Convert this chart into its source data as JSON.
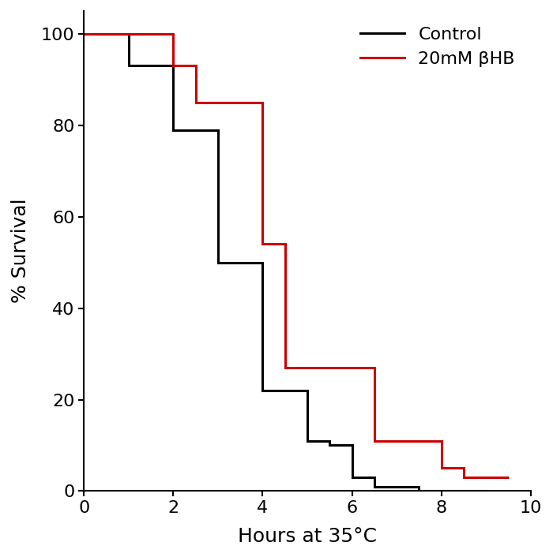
{
  "control_x": [
    0,
    1.0,
    1.0,
    2.0,
    2.0,
    2.0,
    2.0,
    3.0,
    3.0,
    4.0,
    4.0,
    5.0,
    5.0,
    5.5,
    5.5,
    6.0,
    6.0,
    6.5,
    6.5,
    7.0,
    7.0,
    7.5,
    7.5,
    8.0,
    8.0,
    9.0
  ],
  "control_y": [
    100,
    100,
    93,
    93,
    92,
    92,
    79,
    79,
    50,
    50,
    22,
    22,
    11,
    11,
    10,
    10,
    3,
    3,
    1,
    1,
    1,
    1,
    0,
    0,
    0,
    0
  ],
  "bhb_x": [
    0,
    2.0,
    2.0,
    2.5,
    2.5,
    3.0,
    3.0,
    4.0,
    4.0,
    4.5,
    4.5,
    5.5,
    5.5,
    6.5,
    6.5,
    7.0,
    7.0,
    8.0,
    8.0,
    8.5,
    8.5,
    9.0,
    9.0,
    9.5
  ],
  "bhb_y": [
    100,
    100,
    93,
    93,
    85,
    85,
    85,
    85,
    54,
    54,
    27,
    27,
    27,
    27,
    11,
    11,
    11,
    11,
    5,
    5,
    3,
    3,
    3,
    3
  ],
  "control_color": "#000000",
  "bhb_color": "#cc0000",
  "line_width": 2.2,
  "xlabel": "Hours at 35°C",
  "ylabel": "% Survival",
  "xlim": [
    0,
    10
  ],
  "ylim": [
    0,
    105
  ],
  "xticks": [
    0,
    2,
    4,
    6,
    8,
    10
  ],
  "yticks": [
    0,
    20,
    40,
    60,
    80,
    100
  ],
  "legend_control": "Control",
  "legend_bhb": "20mM βHB",
  "xlabel_fontsize": 18,
  "ylabel_fontsize": 18,
  "tick_fontsize": 16,
  "legend_fontsize": 16
}
